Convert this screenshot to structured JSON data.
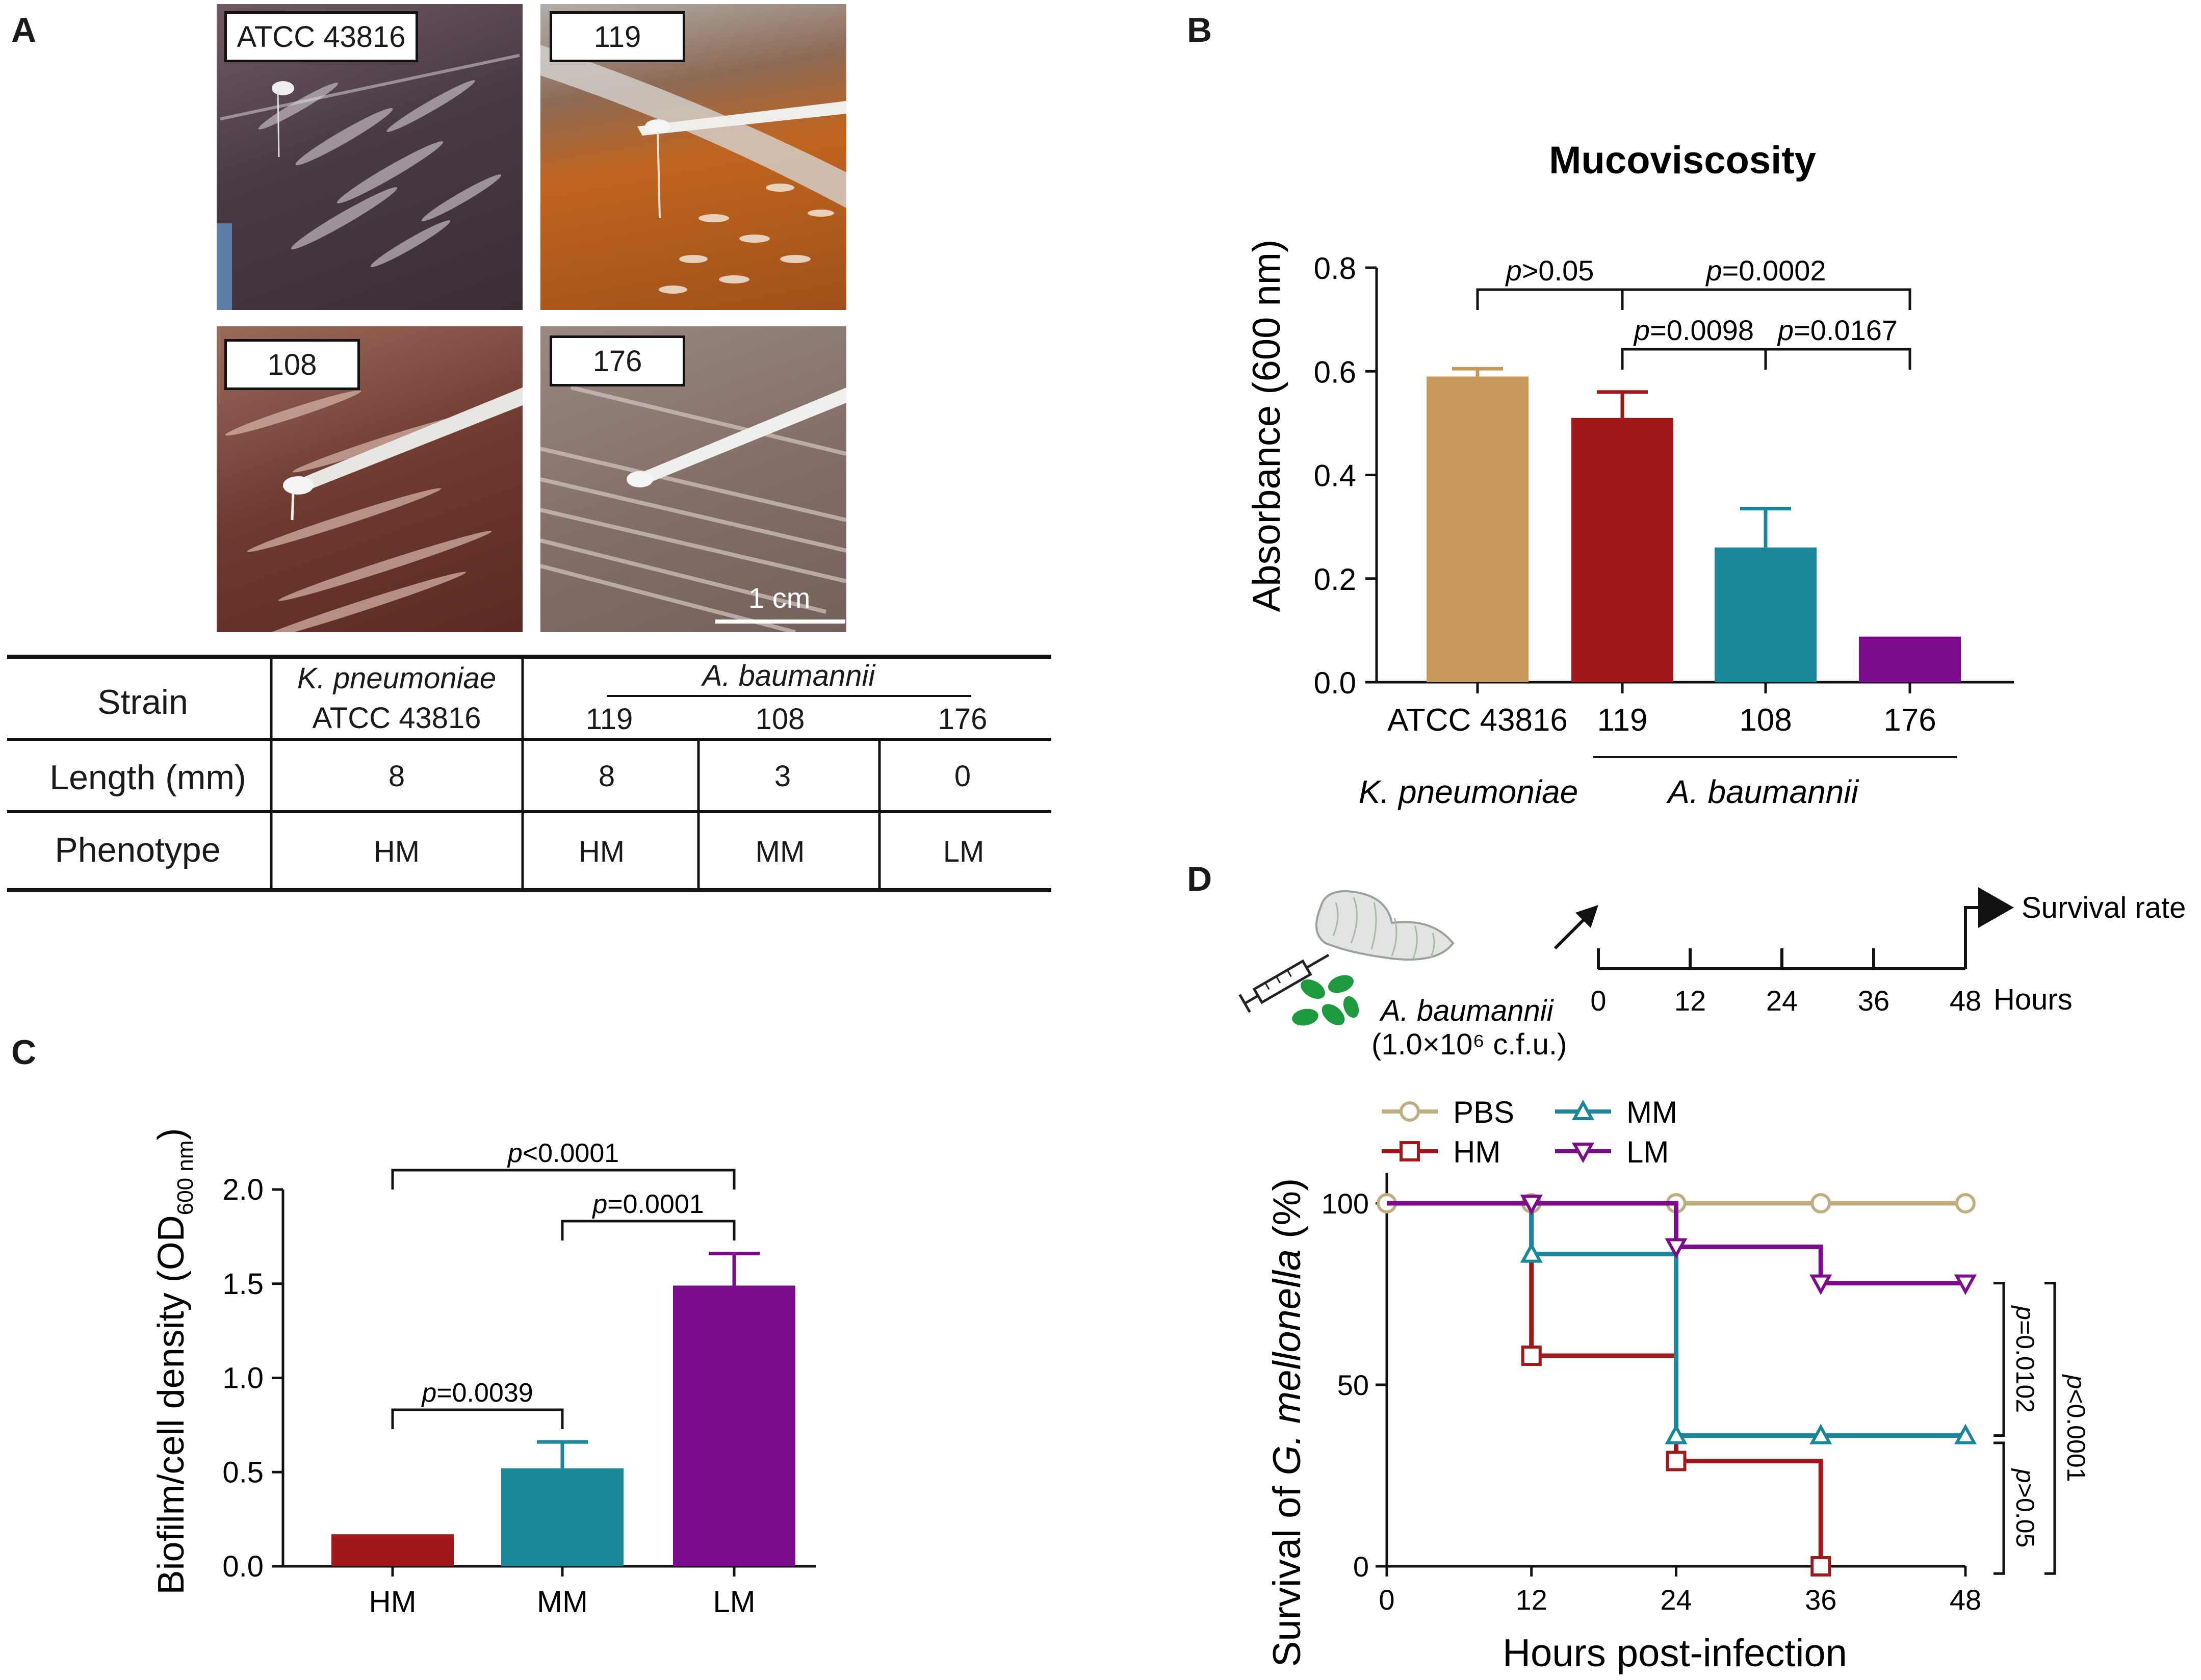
{
  "panels": {
    "a": "A",
    "b": "B",
    "c": "C",
    "d": "D"
  },
  "panel_a": {
    "photos": [
      {
        "label": "ATCC 43816"
      },
      {
        "label": "119"
      },
      {
        "label": "108"
      },
      {
        "label": "176"
      }
    ],
    "scale_bar": "1 cm",
    "table": {
      "row_headers": [
        "Strain",
        "Length (mm)",
        "Phenotype"
      ],
      "kp_species": "K. pneumoniae",
      "kp_strain": "ATCC 43816",
      "ab_species": "A. baumannii",
      "ab_strains": [
        "119",
        "108",
        "176"
      ],
      "lengths": [
        "8",
        "8",
        "3",
        "0"
      ],
      "phenotypes": [
        "HM",
        "HM",
        "MM",
        "LM"
      ]
    }
  },
  "colors": {
    "tan": "#C8995A",
    "red": "#A01818",
    "teal": "#1A8699",
    "purple": "#7D0C8C",
    "pbs": "#BFAF80"
  },
  "chart_data": [
    {
      "id": "B",
      "type": "bar",
      "title": "Mucoviscosity",
      "ylabel": "Absorbance (600 nm)",
      "categories": [
        "ATCC 43816",
        "119",
        "108",
        "176"
      ],
      "values": [
        0.59,
        0.51,
        0.26,
        0.085
      ],
      "errors": [
        0.015,
        0.05,
        0.075,
        0.0
      ],
      "ylim": [
        0,
        0.8
      ],
      "yticks": [
        "0.0",
        "0.2",
        "0.4",
        "0.6",
        "0.8"
      ],
      "group_labels": [
        "K. pneumoniae",
        "A. baumannii"
      ],
      "comparisons": [
        {
          "pair": [
            "ATCC 43816",
            "119"
          ],
          "label": "p>0.05"
        },
        {
          "pair": [
            "119",
            "176"
          ],
          "label": "p=0.0002"
        },
        {
          "pair": [
            "119",
            "108"
          ],
          "label": "p=0.0098"
        },
        {
          "pair": [
            "108",
            "176"
          ],
          "label": "p=0.0167"
        }
      ]
    },
    {
      "id": "C",
      "type": "bar",
      "ylabel": "Biofilm/cell density (OD",
      "ylabel_sub": "600 nm",
      "ylabel_end": ")",
      "categories": [
        "HM",
        "MM",
        "LM"
      ],
      "values": [
        0.17,
        0.52,
        1.49
      ],
      "errors": [
        0.0,
        0.14,
        0.17
      ],
      "ylim": [
        0,
        2.0
      ],
      "yticks": [
        "0.0",
        "0.5",
        "1.0",
        "1.5",
        "2.0"
      ],
      "comparisons": [
        {
          "pair": [
            "HM",
            "LM"
          ],
          "label": "p<0.0001"
        },
        {
          "pair": [
            "MM",
            "LM"
          ],
          "label": "p=0.0001"
        },
        {
          "pair": [
            "HM",
            "MM"
          ],
          "label": "p=0.0039"
        }
      ]
    },
    {
      "id": "D",
      "type": "line",
      "subtype": "survival-step",
      "xlabel": "Hours post-infection",
      "ylabel_pre": "Survival of ",
      "ylabel_italic": "G. mellonella",
      "ylabel_post": " (%)",
      "xlim": [
        0,
        48
      ],
      "ylim": [
        0,
        100
      ],
      "xticks": [
        "0",
        "12",
        "24",
        "36",
        "48"
      ],
      "yticks": [
        "0",
        "50",
        "100"
      ],
      "series": [
        {
          "name": "PBS",
          "x": [
            0,
            12,
            24,
            36,
            48
          ],
          "y": [
            100,
            100,
            100,
            100,
            100
          ]
        },
        {
          "name": "HM",
          "x": [
            12,
            24,
            36
          ],
          "y": [
            58,
            29,
            0
          ]
        },
        {
          "name": "MM",
          "x": [
            12,
            24,
            36,
            48
          ],
          "y": [
            86,
            36,
            36,
            36
          ]
        },
        {
          "name": "LM",
          "x": [
            12,
            24,
            36,
            48
          ],
          "y": [
            100,
            88,
            78,
            78
          ]
        }
      ],
      "comparisons": [
        {
          "label": "p=0.0102"
        },
        {
          "label": "p>0.05"
        },
        {
          "label": "p<0.0001"
        }
      ],
      "timeline": {
        "species": "A. baumannii",
        "dose": "(1.0×10⁶ c.f.u.)",
        "ticks": [
          "0",
          "12",
          "24",
          "36",
          "48"
        ],
        "unit": "Hours",
        "outcome": "Survival rate"
      }
    }
  ]
}
